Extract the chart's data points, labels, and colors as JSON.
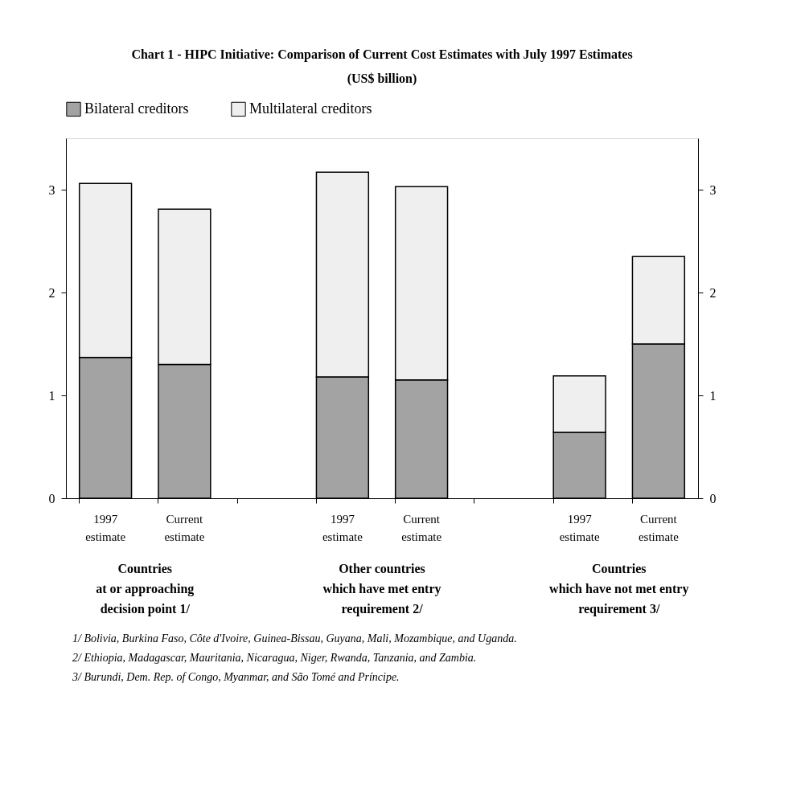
{
  "chart_data": {
    "type": "bar",
    "title": "Chart 1 - HIPC Initiative: Comparison of Current Cost Estimates with July 1997 Estimates",
    "subtitle": "(US$ billion)",
    "categories": [
      "1997\nestimate",
      "Current\nestimate",
      null,
      "1997\nestimate",
      "Current\nestimate",
      null,
      "1997\nestimate",
      "Current\nestimate"
    ],
    "stacked": true,
    "series": [
      {
        "name": "Bilateral creditors",
        "color": "#a3a3a3",
        "values": [
          1.37,
          1.3,
          null,
          1.18,
          1.15,
          null,
          0.64,
          1.5
        ]
      },
      {
        "name": "Multilateral creditors",
        "color": "#efefef",
        "values": [
          1.69,
          1.51,
          null,
          1.99,
          1.88,
          null,
          0.55,
          0.85
        ]
      }
    ],
    "ylim": [
      0,
      3.5
    ],
    "yticks": [
      0,
      1,
      2,
      3
    ],
    "y2lim": [
      0,
      3.5
    ],
    "y2ticks": [
      0,
      1,
      2,
      3
    ],
    "legend": "top",
    "grid": false,
    "annotations": [
      "Countries\nat or approaching\ndecision point 1/",
      "Other countries\nwhich have met entry\nrequirement 2/",
      "Countries\nwhich have not met entry\nrequirement 3/",
      "1/ Bolivia, Burkina Faso, Côte d'Ivoire, Guinea-Bissau, Guyana, Mali, Mozambique, and Uganda.",
      "2/ Ethiopia, Madagascar, Mauritania, Nicaragua, Niger, Rwanda, Tanzania, and Zambia.",
      "3/ Burundi, Dem. Rep. of Congo, Myanmar, and São Tomé and Príncipe."
    ]
  }
}
